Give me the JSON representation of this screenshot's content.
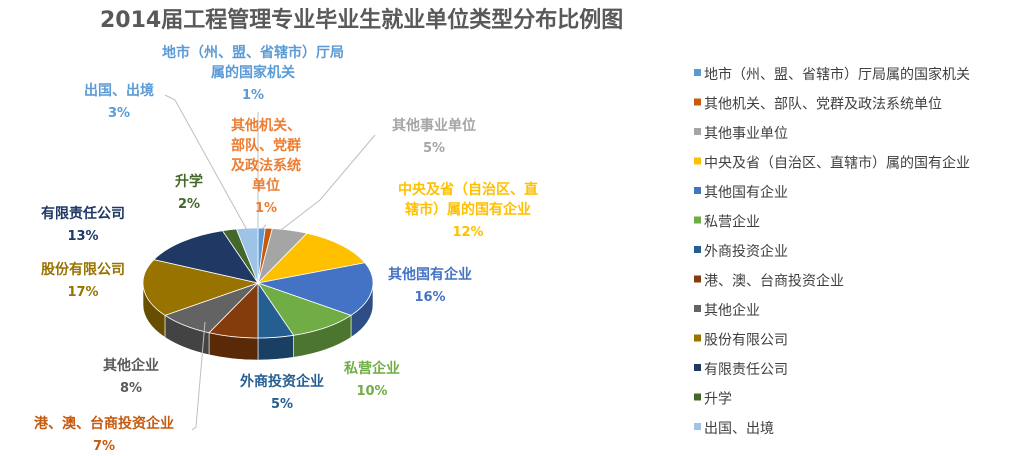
{
  "chart_data": {
    "type": "pie",
    "title": "2014届工程管理专业毕业生就业单位类型分布比例图",
    "legend_position": "right",
    "categories": [
      "地市（州、盟、省辖市）厅局属的国家机关",
      "其他机关、部队、党群及政法系统单位",
      "其他事业单位",
      "中央及省（自治区、直辖市）属的国有企业",
      "其他国有企业",
      "私营企业",
      "外商投资企业",
      "港、澳、台商投资企业",
      "其他企业",
      "股份有限公司",
      "有限责任公司",
      "升学",
      "出国、出境"
    ],
    "values": [
      1,
      1,
      5,
      12,
      16,
      10,
      5,
      7,
      8,
      17,
      13,
      2,
      3
    ],
    "value_labels": [
      "1%",
      "1%",
      "5%",
      "12%",
      "16%",
      "10%",
      "5%",
      "7%",
      "8%",
      "17%",
      "13%",
      "2%",
      "3%"
    ],
    "slice_labels": [
      [
        "地市（州、盟、省辖市）厅局",
        "属的国家机关"
      ],
      [
        "其他机关、",
        "部队、党群",
        "及政法系统",
        "单位"
      ],
      [
        "其他事业单位"
      ],
      [
        "中央及省（自治区、直",
        "辖市）属的国有企业"
      ],
      [
        "其他国有企业"
      ],
      [
        "私营企业"
      ],
      [
        "外商投资企业"
      ],
      [
        "港、澳、台商投资企业"
      ],
      [
        "其他企业"
      ],
      [
        "股份有限公司"
      ],
      [
        "有限责任公司"
      ],
      [
        "升学"
      ],
      [
        "出国、出境"
      ]
    ],
    "colors": [
      "#5B9BD5",
      "#C55A11",
      "#A5A5A5",
      "#FFC000",
      "#4472C4",
      "#70AD47",
      "#255E91",
      "#843C0C",
      "#636363",
      "#997300",
      "#203864",
      "#43682B",
      "#9DC3E6"
    ],
    "label_colors": [
      "#5B9BD5",
      "#ED7D31",
      "#A5A5A5",
      "#FFC000",
      "#4472C4",
      "#70AD47",
      "#255E91",
      "#C55A11",
      "#595959",
      "#997300",
      "#203864",
      "#43682B",
      "#5B9BD5"
    ]
  }
}
